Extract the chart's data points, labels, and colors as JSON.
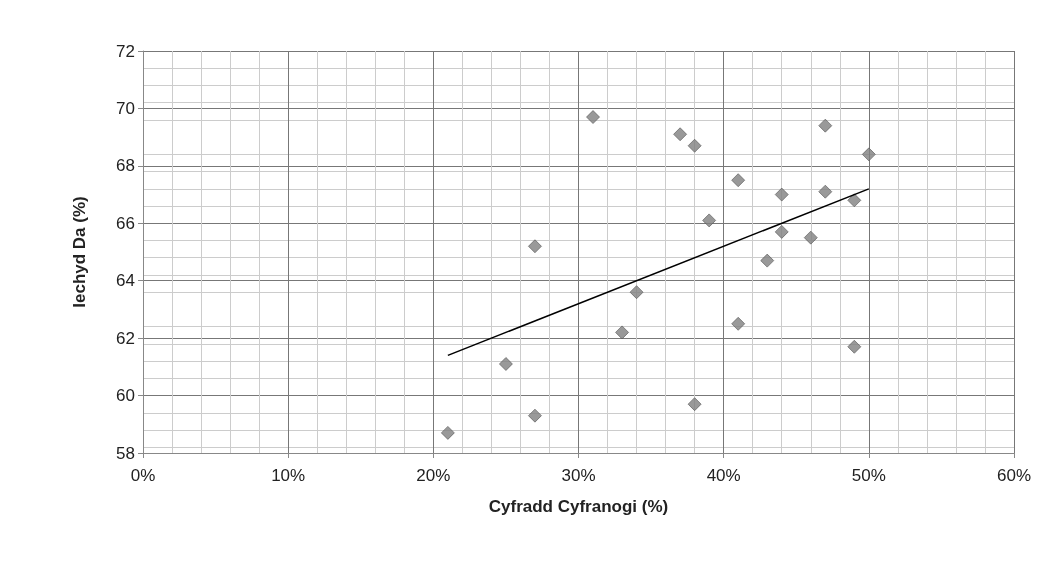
{
  "chart_data": {
    "type": "scatter",
    "xlabel": "Cyfradd Cyfranogi (%)",
    "ylabel": "Iechyd Da (%)",
    "xlim": [
      0,
      60
    ],
    "xticks": [
      {
        "value": 0,
        "label": "0%"
      },
      {
        "value": 10,
        "label": "10%"
      },
      {
        "value": 20,
        "label": "20%"
      },
      {
        "value": 30,
        "label": "30%"
      },
      {
        "value": 40,
        "label": "40%"
      },
      {
        "value": 50,
        "label": "50%"
      },
      {
        "value": 60,
        "label": "60%"
      }
    ],
    "ylim": [
      58,
      72
    ],
    "yticks": [
      58,
      60,
      62,
      64,
      66,
      68,
      70,
      72
    ],
    "grid": true,
    "marker": "diamond",
    "series": [
      {
        "type": "scatter",
        "color": "#7f7f7f",
        "x": [
          21,
          25,
          27,
          27,
          31,
          33,
          34,
          37,
          38,
          38,
          39,
          41,
          41,
          43,
          44,
          44,
          46,
          47,
          47,
          49,
          49,
          50
        ],
        "values": [
          58.7,
          61.1,
          59.3,
          65.2,
          69.7,
          62.2,
          63.6,
          69.1,
          68.7,
          59.7,
          66.1,
          67.5,
          62.5,
          64.7,
          67.0,
          65.7,
          65.5,
          69.4,
          67.1,
          66.8,
          61.7,
          68.4
        ]
      },
      {
        "type": "line",
        "color": "#000000",
        "marker": "none",
        "x": [
          21,
          50
        ],
        "values": [
          61.4,
          67.2
        ]
      }
    ]
  }
}
